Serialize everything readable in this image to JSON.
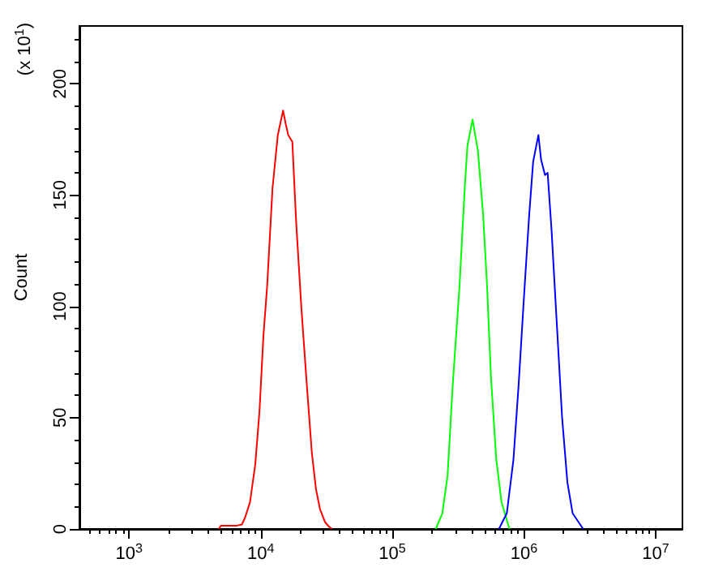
{
  "chart_data": {
    "type": "line",
    "ylabel": "Count",
    "annotations": [
      "(x 10$^{1}$)"
    ],
    "log": "x",
    "marker": "none",
    "line_style": "solid",
    "xlim": [
      420,
      16000000
    ],
    "xticks": [
      {
        "value": 1000,
        "label": "10$^{3}$"
      },
      {
        "value": 10000,
        "label": "10$^{4}$"
      },
      {
        "value": 100000,
        "label": "10$^{5}$"
      },
      {
        "value": 1000000,
        "label": "10$^{6}$"
      },
      {
        "value": 10000000,
        "label": "10$^{7}$"
      }
    ],
    "ylim": [
      0,
      226
    ],
    "yticks": [
      0,
      50,
      100,
      150,
      200
    ],
    "series": [
      {
        "color": "#ff0000",
        "x": [
          4800,
          5000,
          6600,
          7200,
          7600,
          8300,
          9100,
          9800,
          10500,
          11200,
          12300,
          13500,
          14800,
          15500,
          16200,
          17400,
          18600,
          20400,
          22400,
          24500,
          26300,
          28200,
          30900,
          33100,
          34700
        ],
        "values": [
          0,
          1.5,
          1.5,
          2,
          5,
          12,
          29,
          53,
          87,
          109,
          153,
          177,
          188,
          182,
          177,
          174,
          138,
          99,
          65,
          34,
          18,
          9,
          3,
          1,
          0
        ]
      },
      {
        "color": "#00ff00",
        "x": [
          214000,
          240000,
          263000,
          288000,
          324000,
          355000,
          372000,
          407000,
          447000,
          490000,
          525000,
          562000,
          617000,
          676000,
          776000
        ],
        "values": [
          0,
          7,
          24,
          65,
          109,
          153,
          172,
          184,
          170,
          141,
          109,
          68,
          31,
          12,
          0
        ]
      },
      {
        "color": "#0000ff",
        "x": [
          646000,
          741000,
          832000,
          912000,
          1000000,
          1096000,
          1175000,
          1288000,
          1349000,
          1445000,
          1514000,
          1622000,
          1778000,
          1950000,
          2138000,
          2344000,
          2818000
        ],
        "values": [
          0,
          7,
          31,
          65,
          104,
          141,
          165,
          177,
          166,
          159,
          160,
          134,
          92,
          50,
          21,
          7,
          0
        ]
      }
    ]
  }
}
